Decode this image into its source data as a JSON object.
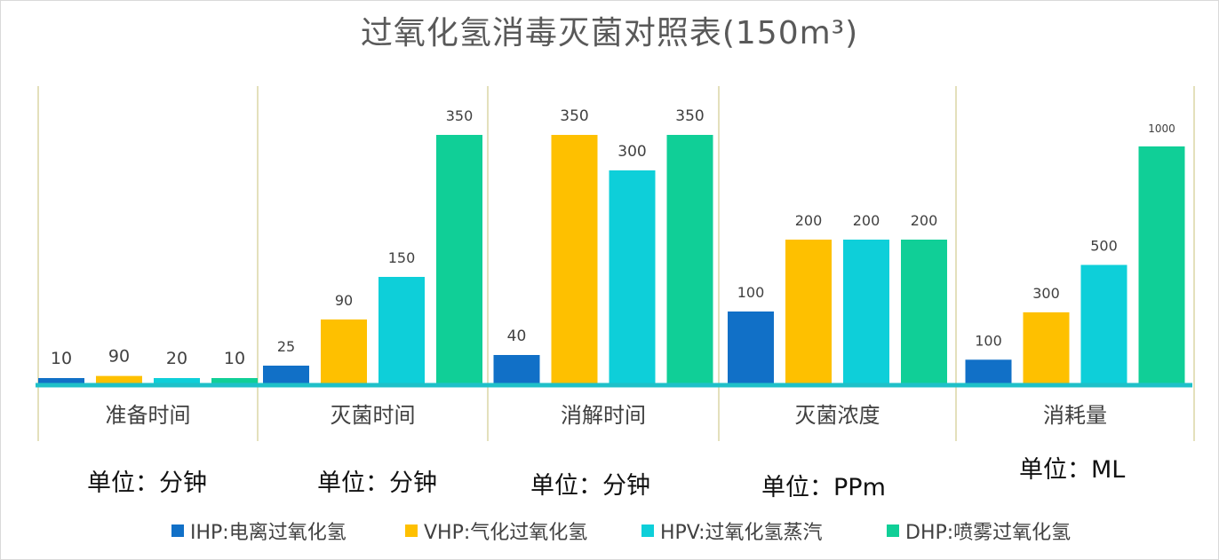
{
  "chart_data": {
    "type": "bar",
    "title": "过氧化氢消毒灭菌对照表(150m³)",
    "groups": [
      {
        "label": "准备时间",
        "unit": "单位：分钟",
        "values": [
          10,
          90,
          20,
          10
        ],
        "value_labels": [
          "10",
          "90",
          "20",
          "10"
        ]
      },
      {
        "label": "灭菌时间",
        "unit": "单位：分钟",
        "values": [
          25,
          90,
          150,
          350
        ],
        "value_labels": [
          "25",
          "90",
          "150",
          "350"
        ]
      },
      {
        "label": "消解时间",
        "unit": "单位：分钟",
        "values": [
          40,
          350,
          300,
          350
        ],
        "value_labels": [
          "40",
          "350",
          "300",
          "350"
        ]
      },
      {
        "label": "灭菌浓度",
        "unit": "单位：PPm",
        "values": [
          100,
          200,
          200,
          200
        ],
        "value_labels": [
          "100",
          "200",
          "200",
          "200"
        ]
      },
      {
        "label": "消耗量",
        "unit": "单位：ML",
        "values": [
          100,
          300,
          500,
          1000
        ],
        "value_labels": [
          "100",
          "300",
          "500",
          "1000"
        ]
      }
    ],
    "series": [
      {
        "name": "IHP:电离过氧化氢",
        "color": "#1170c7"
      },
      {
        "name": "VHP:气化过氧化氢",
        "color": "#fec000"
      },
      {
        "name": "HPV:过氧化氢蒸汽",
        "color": "#0ecfd9"
      },
      {
        "name": "DHP:喷雾过氧化氢",
        "color": "#10cf97"
      }
    ],
    "legend_position": "bottom",
    "grid": false
  },
  "colors": {
    "axis": "#1fc0c8",
    "divider": "#c9c27a",
    "title": "#595959"
  }
}
